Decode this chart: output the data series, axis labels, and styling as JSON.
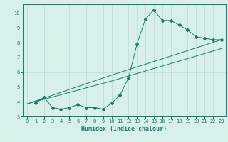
{
  "title": "",
  "xlabel": "Humidex (Indice chaleur)",
  "bg_color": "#d8f0ec",
  "grid_color": "#b8dcd6",
  "line_color": "#1a7a6a",
  "xlim": [
    -0.5,
    23.5
  ],
  "ylim": [
    3,
    10.6
  ],
  "xticks": [
    0,
    1,
    2,
    3,
    4,
    5,
    6,
    7,
    8,
    9,
    10,
    11,
    12,
    13,
    14,
    15,
    16,
    17,
    18,
    19,
    20,
    21,
    22,
    23
  ],
  "yticks": [
    3,
    4,
    5,
    6,
    7,
    8,
    9,
    10
  ],
  "series1_x": [
    1,
    2,
    3,
    4,
    5,
    6,
    7,
    8,
    9,
    10,
    11,
    12,
    13,
    14,
    15,
    16,
    17,
    18,
    19,
    20,
    21,
    22,
    23
  ],
  "series1_y": [
    3.9,
    4.3,
    3.6,
    3.5,
    3.6,
    3.8,
    3.6,
    3.6,
    3.5,
    3.9,
    4.45,
    5.6,
    7.9,
    9.6,
    10.2,
    9.5,
    9.5,
    9.2,
    8.85,
    8.4,
    8.3,
    8.2,
    8.2
  ],
  "series2_x": [
    0,
    10,
    23
  ],
  "series2_y": [
    3.85,
    5.8,
    8.2
  ],
  "series3_x": [
    0,
    10,
    23
  ],
  "series3_y": [
    3.85,
    5.4,
    7.6
  ],
  "marker": "D",
  "marker_size": 2.0
}
